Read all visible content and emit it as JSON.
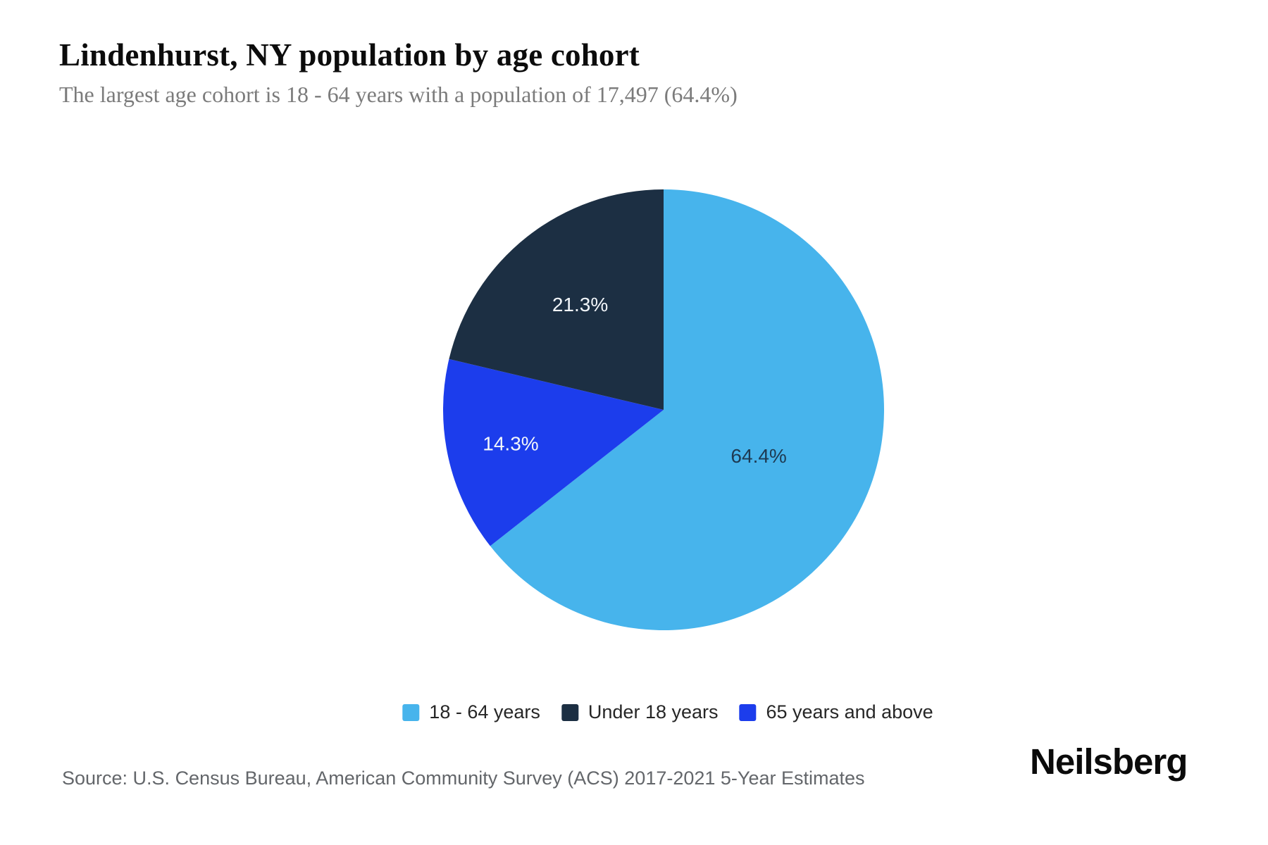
{
  "header": {
    "title": "Lindenhurst, NY population by age cohort",
    "subtitle": "The largest age cohort is 18 - 64 years with a population of 17,497 (64.4%)"
  },
  "chart_data": {
    "type": "pie",
    "title": "Lindenhurst, NY population by age cohort",
    "unit": "percent of population",
    "slices": [
      {
        "label": "18 - 64 years",
        "value": 64.4,
        "display": "64.4%",
        "color": "#47b4ec",
        "label_color": "#1e3a52"
      },
      {
        "label": "Under 18 years",
        "value": 21.3,
        "display": "21.3%",
        "color": "#1c2f43",
        "label_color": "#f2f6fa"
      },
      {
        "label": "65 years and above",
        "value": 14.3,
        "display": "14.3%",
        "color": "#1c3dec",
        "label_color": "#f2f6fa"
      }
    ],
    "largest_slice": {
      "label": "18 - 64 years",
      "population": "17,497",
      "share": "64.4%"
    },
    "start_angle_deg": 0,
    "direction": "clockwise",
    "legend_position": "bottom",
    "grid": "off"
  },
  "footer": {
    "source": "Source: U.S. Census Bureau, American Community Survey (ACS) 2017-2021 5-Year Estimates",
    "brand": "Neilsberg"
  }
}
